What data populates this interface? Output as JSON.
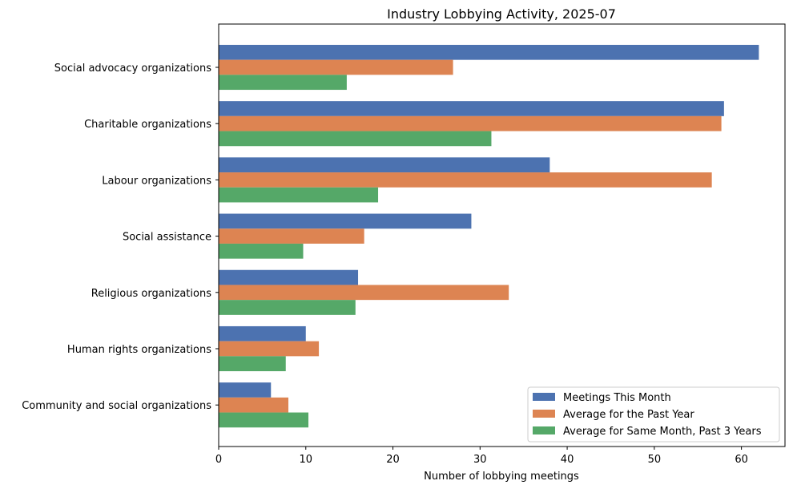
{
  "chart_data": {
    "type": "bar",
    "orientation": "horizontal",
    "title": "Industry Lobbying Activity, 2025-07",
    "xlabel": "Number of lobbying meetings",
    "ylabel": "",
    "xlim": [
      0,
      65
    ],
    "xticks": [
      0,
      10,
      20,
      30,
      40,
      50,
      60
    ],
    "categories": [
      "Social advocacy organizations",
      "Charitable organizations",
      "Labour organizations",
      "Social assistance",
      "Religious organizations",
      "Human rights organizations",
      "Community and social organizations"
    ],
    "series": [
      {
        "name": "Meetings This Month",
        "color": "#4c72b0",
        "values": [
          62,
          58,
          38,
          29,
          16,
          10,
          6
        ]
      },
      {
        "name": "Average for the Past Year",
        "color": "#dd8452",
        "values": [
          26.9,
          57.7,
          56.6,
          16.7,
          33.3,
          11.5,
          8.0
        ]
      },
      {
        "name": "Average for Same Month, Past 3 Years",
        "color": "#55a868",
        "values": [
          14.7,
          31.3,
          18.3,
          9.7,
          15.7,
          7.7,
          10.3
        ]
      }
    ],
    "grid": false,
    "legend_position": "bottom-right"
  }
}
